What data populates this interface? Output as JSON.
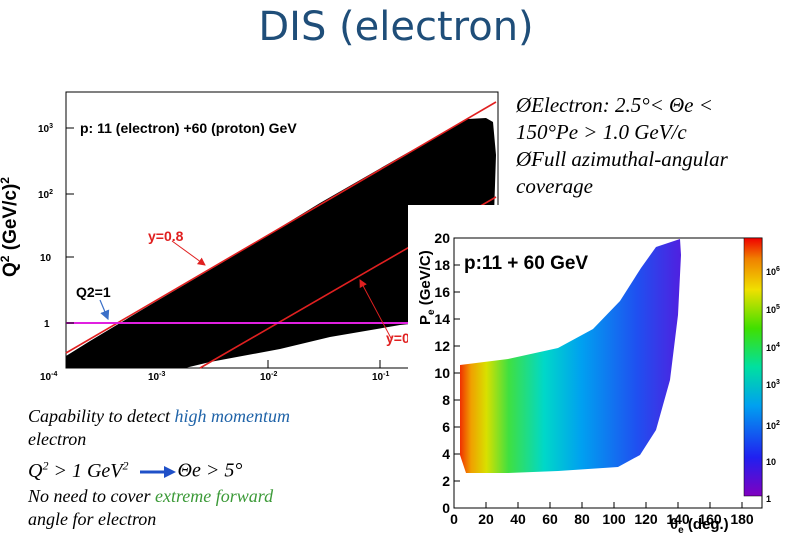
{
  "slide": {
    "title": "DIS (electron)"
  },
  "bullets": {
    "line1": "ØElectron:  2.5°< Θe <",
    "line2": "150°Pe > 1.0 GeV/c",
    "line3": "ØFull azimuthal-angular",
    "line4": "coverage"
  },
  "capability": {
    "line1_pre": "Capability to detect ",
    "line1_hl": "high momentum",
    "line2": "electron",
    "q2_cond": "Q2 > 1 GeV2",
    "theta_cond": "Θe > 5°",
    "line4_pre": "No need to cover ",
    "line4_hl": "extreme forward",
    "line5": "angle for electron"
  },
  "colors": {
    "title": "#1f4e79",
    "highlight_blue": "#1f63a8",
    "highlight_green": "#3c9a38",
    "cut_line": "#e02020",
    "q2_line": "#e020e0",
    "arrow": "#3a6fc8"
  },
  "chart_data": [
    {
      "type": "scatter",
      "title": "p: 11 (electron) +60 (proton) GeV",
      "ylabel": "Q2 (GeV/c)2",
      "xlabel": "",
      "x_scale": "log",
      "y_scale": "log",
      "x_ticks": [
        "10-4",
        "10-3",
        "10-2",
        "10-1"
      ],
      "y_ticks": [
        "1",
        "10",
        "102",
        "103"
      ],
      "annotations": [
        "y=0.8",
        "Q2=1",
        "y=0"
      ],
      "reference_lines": [
        {
          "label": "Q2=1",
          "y": 1,
          "color": "#e020e0"
        },
        {
          "label": "y=0.8",
          "color": "#e02020"
        }
      ]
    },
    {
      "type": "heatmap",
      "title": "p: 11 + 60 GeV",
      "xlabel": "θe (deg.)",
      "ylabel": "Pe (GeV/C)",
      "x_ticks": [
        0,
        20,
        40,
        60,
        80,
        100,
        120,
        140,
        160,
        180
      ],
      "y_ticks": [
        0,
        2,
        4,
        6,
        8,
        10,
        12,
        14,
        16,
        18,
        20
      ],
      "xlim": [
        0,
        180
      ],
      "ylim": [
        0,
        20
      ],
      "z_scale": "log",
      "z_ticks": [
        "1",
        "10",
        "102",
        "103",
        "104",
        "105",
        "106"
      ]
    }
  ]
}
